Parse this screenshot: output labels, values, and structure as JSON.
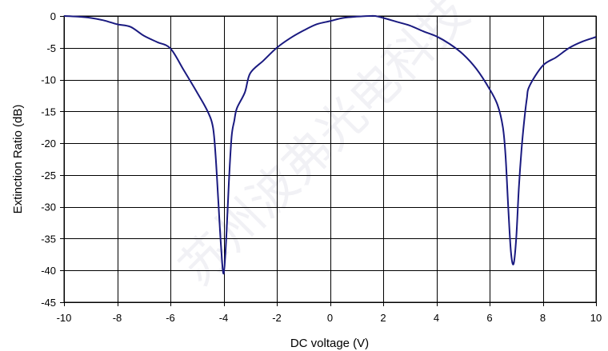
{
  "chart_data": {
    "type": "line",
    "title": "",
    "xlabel": "DC voltage (V)",
    "ylabel": "Extinction Ratio (dB)",
    "xlim": [
      -10,
      10
    ],
    "ylim": [
      -45,
      0
    ],
    "xticks": [
      -10,
      -8,
      -6,
      -4,
      -2,
      0,
      2,
      4,
      6,
      8,
      10
    ],
    "yticks": [
      0,
      -5,
      -10,
      -15,
      -20,
      -25,
      -30,
      -35,
      -40,
      -45
    ],
    "grid": true,
    "series": [
      {
        "color": "#1a1a80",
        "x": [
          -10,
          -9.5,
          -9,
          -8.5,
          -8,
          -7.5,
          -7,
          -6.5,
          -6,
          -5.5,
          -5,
          -4.6,
          -4.4,
          -4.3,
          -4.2,
          -4.1,
          -4.0,
          -3.9,
          -3.8,
          -3.7,
          -3.6,
          -3.5,
          -3.2,
          -3,
          -2.5,
          -2,
          -1.5,
          -1,
          -0.5,
          0,
          0.5,
          1,
          1.5,
          1.7,
          2,
          2.5,
          3,
          3.5,
          4,
          4.5,
          5,
          5.5,
          6,
          6.3,
          6.5,
          6.6,
          6.7,
          6.8,
          6.9,
          7.0,
          7.1,
          7.2,
          7.3,
          7.4,
          7.5,
          8,
          8.5,
          9,
          9.5,
          10
        ],
        "y": [
          0,
          -0.1,
          -0.3,
          -0.7,
          -1.3,
          -1.7,
          -3.1,
          -4.1,
          -5.1,
          -8.5,
          -12,
          -15,
          -17.5,
          -22,
          -29,
          -36,
          -40.5,
          -35,
          -26,
          -19,
          -16.5,
          -14.5,
          -12,
          -9,
          -7,
          -5,
          -3.5,
          -2.3,
          -1.3,
          -0.8,
          -0.3,
          -0.1,
          0,
          0,
          -0.3,
          -0.9,
          -1.5,
          -2.4,
          -3.2,
          -4.4,
          -6,
          -8.3,
          -11.5,
          -14,
          -17.5,
          -22,
          -30,
          -37,
          -39,
          -35,
          -27,
          -21,
          -16.5,
          -13,
          -11,
          -7.8,
          -6.5,
          -5,
          -4,
          -3.3
        ]
      }
    ]
  },
  "watermark": "苏州波弗光电科技"
}
